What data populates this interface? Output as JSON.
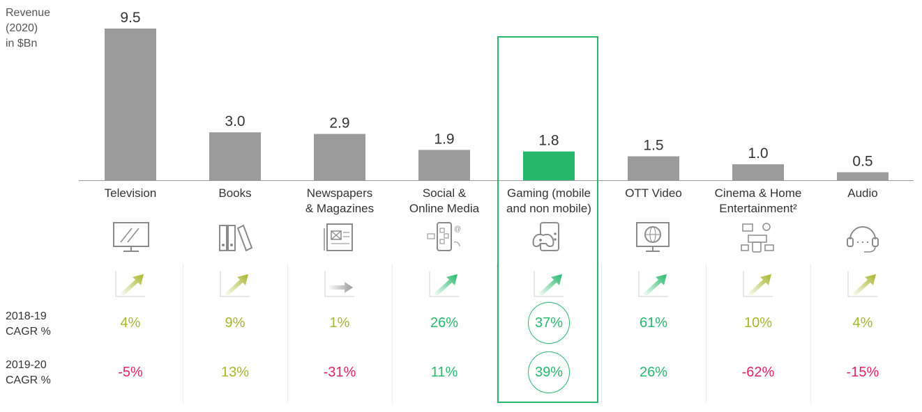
{
  "chart_data": {
    "type": "bar",
    "ylabel": "Revenue\n(2020)\nin $Bn",
    "categories": [
      "Television",
      "Books",
      "Newspapers\n& Magazines",
      "Social &\nOnline Media",
      "Gaming (mobile\nand non mobile)",
      "OTT Video",
      "Cinema & Home\nEntertainment²",
      "Audio"
    ],
    "values": [
      9.5,
      3.0,
      2.9,
      1.9,
      1.8,
      1.5,
      1.0,
      0.5
    ],
    "value_labels": [
      "9.5",
      "3.0",
      "2.9",
      "1.9",
      "1.8",
      "1.5",
      "1.0",
      "0.5"
    ],
    "highlight_index": 4,
    "ylim": [
      0,
      9.5
    ],
    "trend_icons": [
      "up",
      "up",
      "flat",
      "up",
      "up",
      "up",
      "up",
      "up"
    ],
    "cagr_rows": [
      {
        "label": "2018-19\nCAGR %",
        "values": [
          "4%",
          "9%",
          "1%",
          "26%",
          "37%",
          "61%",
          "10%",
          "4%"
        ],
        "tones": [
          "olive",
          "olive",
          "olive",
          "green",
          "green",
          "green",
          "olive",
          "olive"
        ]
      },
      {
        "label": "2019-20\nCAGR %",
        "values": [
          "-5%",
          "13%",
          "-31%",
          "11%",
          "39%",
          "26%",
          "-62%",
          "-15%"
        ],
        "tones": [
          "red",
          "olive",
          "red",
          "green",
          "green",
          "green",
          "red",
          "red"
        ]
      }
    ]
  },
  "colors": {
    "bar": "#9b9b9b",
    "bar_highlight": "#26b86b",
    "olive": "#a7b52c",
    "green": "#26b86b",
    "red": "#e0245e",
    "axis": "#999999",
    "icon": "#8a8a8a"
  },
  "icons": [
    "tv-icon",
    "books-icon",
    "newspaper-icon",
    "social-media-icon",
    "gamepad-icon",
    "ott-video-icon",
    "cinema-icon",
    "headset-icon"
  ]
}
